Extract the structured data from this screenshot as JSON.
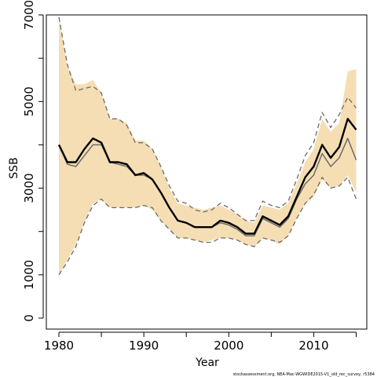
{
  "chart_data": {
    "type": "line",
    "xlabel": "Year",
    "ylabel": "SSB",
    "footer": "stockassessment.org, NEA-Mac-WGWIDE2015-V1_old_rec_survey, r5384",
    "xlim": [
      1980,
      2015
    ],
    "ylim": [
      0,
      7000
    ],
    "x_ticks": [
      1980,
      1990,
      2000,
      2010
    ],
    "y_ticks": [
      0,
      1000,
      3000,
      5000,
      7000
    ],
    "grid": false,
    "legend": "none",
    "colors": {
      "band": "#f5deb3",
      "estimate": "#000000",
      "comparison": "#6b6b6b",
      "comparison_ci": "#6b6b6b"
    },
    "x": [
      1980,
      1981,
      1982,
      1983,
      1984,
      1985,
      1986,
      1987,
      1988,
      1989,
      1990,
      1991,
      1992,
      1993,
      1994,
      1995,
      1996,
      1997,
      1998,
      1999,
      2000,
      2001,
      2002,
      2003,
      2004,
      2005,
      2006,
      2007,
      2008,
      2009,
      2010,
      2011,
      2012,
      2013,
      2014,
      2015
    ],
    "series": [
      {
        "name": "",
        "role": "band_upper",
        "values": [
          6950,
          5800,
          5400,
          5400,
          5500,
          5200,
          4600,
          4600,
          4500,
          4100,
          4100,
          3900,
          3500,
          3000,
          2650,
          2600,
          2550,
          2500,
          2550,
          2600,
          2500,
          2400,
          2250,
          2200,
          2600,
          2550,
          2500,
          2650,
          3100,
          3600,
          3900,
          4600,
          4300,
          4500,
          5700,
          5750
        ]
      },
      {
        "name": "",
        "role": "band_lower",
        "values": [
          1000,
          1350,
          1700,
          2200,
          2650,
          2750,
          2550,
          2550,
          2550,
          2550,
          2600,
          2500,
          2250,
          2050,
          1850,
          1850,
          1800,
          1750,
          1800,
          1850,
          1850,
          1800,
          1700,
          1650,
          1850,
          1800,
          1700,
          1900,
          2300,
          2650,
          2800,
          3200,
          3000,
          3050,
          3300,
          2900
        ]
      },
      {
        "name": "",
        "role": "estimate",
        "values": [
          4000,
          3600,
          3600,
          3900,
          4150,
          4050,
          3600,
          3600,
          3550,
          3300,
          3350,
          3200,
          2900,
          2550,
          2250,
          2200,
          2100,
          2100,
          2100,
          2250,
          2200,
          2100,
          1950,
          1950,
          2350,
          2250,
          2150,
          2350,
          2800,
          3250,
          3500,
          4000,
          3700,
          3950,
          4600,
          4350
        ]
      },
      {
        "name": "",
        "role": "comparison",
        "values": [
          4000,
          3550,
          3500,
          3750,
          4000,
          4000,
          3600,
          3550,
          3500,
          3300,
          3300,
          3200,
          2900,
          2550,
          2250,
          2200,
          2100,
          2100,
          2100,
          2200,
          2150,
          2050,
          1900,
          1900,
          2300,
          2200,
          2100,
          2300,
          2750,
          3100,
          3300,
          3800,
          3500,
          3700,
          4150,
          3650
        ]
      },
      {
        "name": "",
        "role": "comparison_ci_upper",
        "values": [
          6950,
          5850,
          5250,
          5300,
          5350,
          5200,
          4600,
          4600,
          4450,
          4050,
          4050,
          3900,
          3500,
          3050,
          2700,
          2650,
          2500,
          2450,
          2500,
          2650,
          2550,
          2400,
          2250,
          2250,
          2700,
          2600,
          2550,
          2700,
          3200,
          3750,
          4050,
          4750,
          4400,
          4700,
          5100,
          4850
        ]
      },
      {
        "name": "",
        "role": "comparison_ci_lower",
        "values": [
          1000,
          1300,
          1650,
          2200,
          2600,
          2750,
          2550,
          2550,
          2550,
          2550,
          2600,
          2550,
          2250,
          2050,
          1850,
          1850,
          1800,
          1750,
          1750,
          1850,
          1850,
          1800,
          1700,
          1650,
          1850,
          1800,
          1750,
          1900,
          2300,
          2650,
          2850,
          3250,
          3000,
          3050,
          3250,
          2750
        ]
      }
    ]
  }
}
